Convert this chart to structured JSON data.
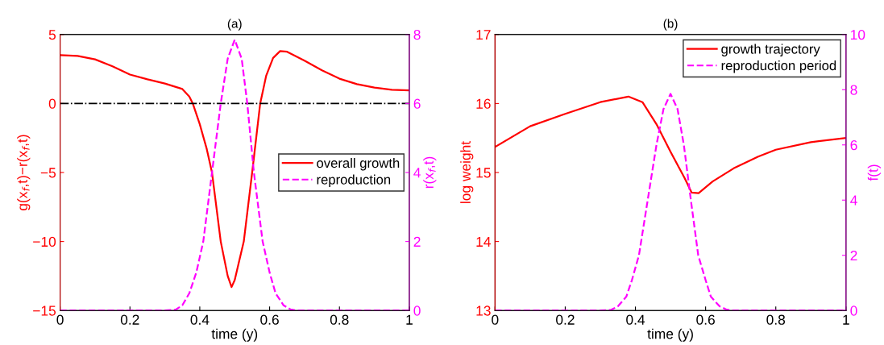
{
  "chart_data": [
    {
      "type": "line",
      "title": "(a)",
      "xlabel": "time (y)",
      "ylabel": "g(x$_{f}$,t)−r(x$_{f}$,t)",
      "y2label": "r(x$_{f}$,t)",
      "xlim": [
        0,
        1
      ],
      "xticks": [
        0,
        0.2,
        0.4,
        0.6,
        0.8,
        1
      ],
      "ylim": [
        -15,
        5
      ],
      "yticks": [
        {
          "value": -15,
          "label": "−15"
        },
        {
          "value": -10,
          "label": "−10"
        },
        {
          "value": -5,
          "label": "−5"
        },
        0,
        5
      ],
      "y2lim": [
        0,
        8
      ],
      "y2ticks": [
        0,
        2,
        4,
        6,
        8
      ],
      "grid": false,
      "legend": "right",
      "ref_lines": [
        {
          "axis": "y",
          "value": 0,
          "color": "#000000",
          "line_style": "dashdot"
        }
      ],
      "series": [
        {
          "name": "overall growth",
          "color": "#ff0000",
          "line_style": "solid",
          "x": [
            0,
            0.05,
            0.1,
            0.15,
            0.2,
            0.25,
            0.3,
            0.35,
            0.37,
            0.38,
            0.4,
            0.42,
            0.435,
            0.46,
            0.48,
            0.491,
            0.5,
            0.526,
            0.55,
            0.573,
            0.59,
            0.61,
            0.63,
            0.65,
            0.7,
            0.75,
            0.8,
            0.85,
            0.9,
            0.95,
            1
          ],
          "values": [
            3.5,
            3.45,
            3.2,
            2.7,
            2.1,
            1.75,
            1.45,
            1.05,
            0.5,
            0,
            -1.5,
            -3.3,
            -5,
            -10,
            -12.5,
            -13.3,
            -12.8,
            -10,
            -5,
            0,
            2.0,
            3.3,
            3.8,
            3.75,
            3.1,
            2.4,
            1.8,
            1.4,
            1.15,
            1.0,
            0.95
          ]
        },
        {
          "name": "reproduction",
          "color": "#ff00ff",
          "line_style": "dashed",
          "axis": "y2",
          "x": [
            0,
            0.3,
            0.33,
            0.35,
            0.37,
            0.39,
            0.41,
            0.435,
            0.46,
            0.48,
            0.5,
            0.52,
            0.536,
            0.555,
            0.58,
            0.6,
            0.617,
            0.64,
            0.66,
            0.68,
            1
          ],
          "values": [
            0,
            0,
            0.02,
            0.15,
            0.5,
            1.1,
            2.0,
            4.0,
            6.0,
            7.3,
            7.85,
            7.3,
            6.0,
            4.0,
            2.0,
            1.1,
            0.5,
            0.15,
            0.03,
            0,
            0
          ]
        }
      ]
    },
    {
      "type": "line",
      "title": "(b)",
      "xlabel": "time (y)",
      "ylabel": "log weight",
      "y2label": "f(t)",
      "xlim": [
        0,
        1
      ],
      "xticks": [
        0,
        0.2,
        0.4,
        0.6,
        0.8,
        1
      ],
      "ylim": [
        13,
        17
      ],
      "yticks": [
        13,
        14,
        15,
        16,
        17
      ],
      "y2lim": [
        0,
        10
      ],
      "y2ticks": [
        0,
        2,
        4,
        6,
        8,
        10
      ],
      "grid": false,
      "legend": "top right",
      "series": [
        {
          "name": "growth trajectory",
          "color": "#ff0000",
          "line_style": "solid",
          "x": [
            0,
            0.1,
            0.2,
            0.3,
            0.38,
            0.42,
            0.46,
            0.5,
            0.54,
            0.56,
            0.58,
            0.62,
            0.68,
            0.75,
            0.8,
            0.9,
            1
          ],
          "values": [
            15.37,
            15.67,
            15.85,
            16.02,
            16.1,
            16.02,
            15.7,
            15.3,
            14.92,
            14.71,
            14.7,
            14.87,
            15.06,
            15.23,
            15.33,
            15.44,
            15.5
          ]
        },
        {
          "name": "reproduction period",
          "color": "#ff00ff",
          "line_style": "dashed",
          "axis": "y2",
          "x": [
            0,
            0.3,
            0.33,
            0.35,
            0.374,
            0.39,
            0.41,
            0.435,
            0.46,
            0.48,
            0.5,
            0.52,
            0.538,
            0.558,
            0.579,
            0.6,
            0.615,
            0.64,
            0.66,
            0.68,
            1
          ],
          "values": [
            0,
            0,
            0.02,
            0.15,
            0.5,
            1.1,
            2.0,
            4.0,
            6.0,
            7.3,
            7.85,
            7.3,
            6.0,
            4.0,
            2.0,
            1.1,
            0.5,
            0.15,
            0.03,
            0,
            0
          ]
        }
      ]
    }
  ]
}
